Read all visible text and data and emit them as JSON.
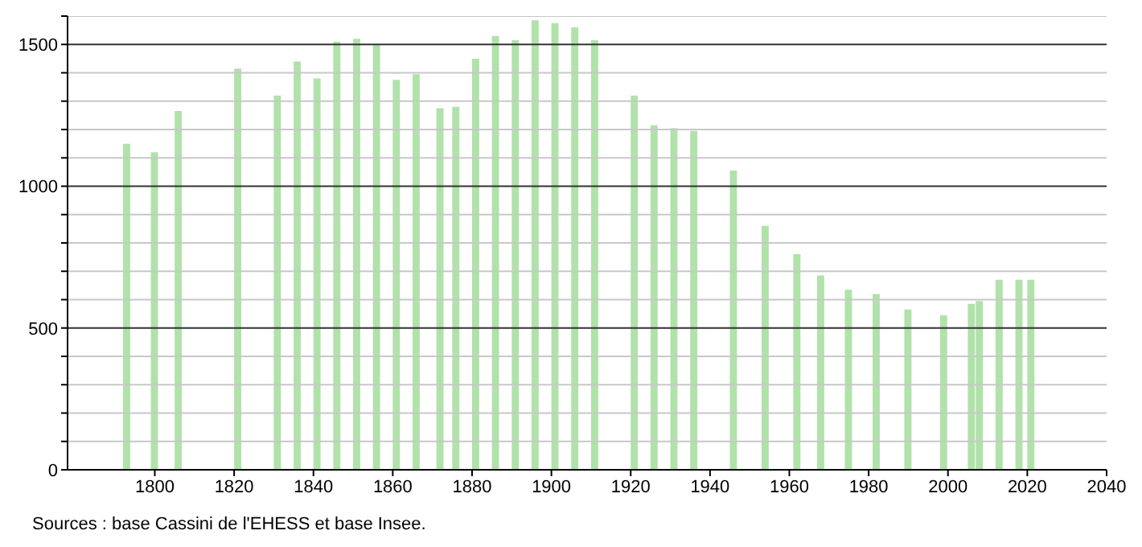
{
  "chart_data": {
    "type": "bar",
    "x": [
      1793,
      1800,
      1806,
      1821,
      1831,
      1836,
      1841,
      1846,
      1851,
      1856,
      1861,
      1866,
      1872,
      1876,
      1881,
      1886,
      1891,
      1896,
      1901,
      1906,
      1911,
      1921,
      1926,
      1931,
      1936,
      1946,
      1954,
      1962,
      1968,
      1975,
      1982,
      1990,
      1999,
      2006,
      2008,
      2013,
      2018,
      2021
    ],
    "values": [
      1150,
      1120,
      1265,
      1415,
      1320,
      1440,
      1380,
      1510,
      1520,
      1500,
      1375,
      1395,
      1275,
      1280,
      1450,
      1530,
      1515,
      1585,
      1575,
      1560,
      1515,
      1320,
      1215,
      1205,
      1195,
      1055,
      860,
      760,
      685,
      635,
      620,
      565,
      545,
      585,
      595,
      670,
      670,
      670
    ],
    "color": "#b0e2aa",
    "xlim": [
      1778,
      2040
    ],
    "xticks": [
      1800,
      1820,
      1840,
      1860,
      1880,
      1900,
      1920,
      1940,
      1960,
      1980,
      2000,
      2020,
      2040
    ],
    "ylim": [
      0,
      1600
    ],
    "yticks": [
      0,
      {
        "value": 100,
        "label": null
      },
      {
        "value": 200,
        "label": null
      },
      {
        "value": 300,
        "label": null
      },
      {
        "value": 400,
        "label": null
      },
      500,
      {
        "value": 600,
        "label": null
      },
      {
        "value": 700,
        "label": null
      },
      {
        "value": 800,
        "label": null
      },
      {
        "value": 900,
        "label": null
      },
      1000,
      {
        "value": 1100,
        "label": null
      },
      {
        "value": 1200,
        "label": null
      },
      {
        "value": 1300,
        "label": null
      },
      {
        "value": 1400,
        "label": null
      },
      1500,
      {
        "value": 1600,
        "label": null
      }
    ],
    "grid": "y",
    "annotations": [
      "Sources : base Cassini de l'EHESS et base Insee."
    ]
  }
}
